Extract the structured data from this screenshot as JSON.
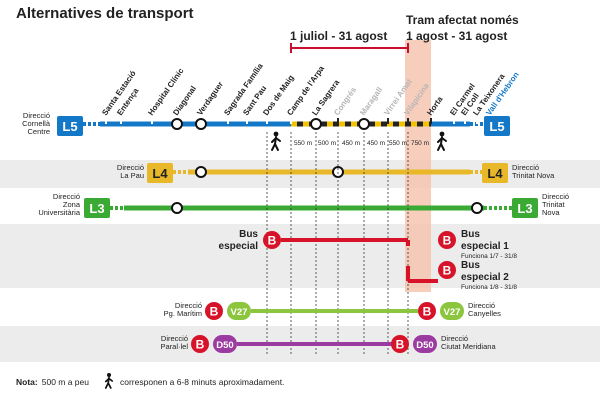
{
  "title": "Alternatives de transport",
  "period_1": "1 juliol - 31 agost",
  "period_2_line1": "Tram afectat només",
  "period_2_line2": "1 agost - 31 agost",
  "stations": [
    {
      "name": "Santa Estació"
    },
    {
      "name": "Entença"
    },
    {
      "name": "Hospital Clínic"
    },
    {
      "name": "Diagonal"
    },
    {
      "name": "Verdaguer"
    },
    {
      "name": "Sagrada Família"
    },
    {
      "name": "Sant Pau"
    },
    {
      "name": "Dos de Maig"
    },
    {
      "name": "Camp de l'Arpa"
    },
    {
      "name": "La Sagrera"
    },
    {
      "name": "Congrés"
    },
    {
      "name": "Maragall"
    },
    {
      "name": "Virrei Amat"
    },
    {
      "name": "Vilapicina"
    },
    {
      "name": "Horta"
    },
    {
      "name": "El Carmel"
    },
    {
      "name": "El Coll"
    },
    {
      "name": "La Teixonera"
    },
    {
      "name": "Vall d'Hebron"
    }
  ],
  "distances": [
    "550 m",
    "500 m",
    "450 m",
    "450 m",
    "550 m",
    "750 m"
  ],
  "lines": [
    {
      "badge": "L5",
      "color": "#1478c8",
      "dir_left": "Direcció\nCornellà\nCentre",
      "dir_right": ""
    },
    {
      "badge": "L4",
      "color": "#e8b828",
      "dir_left": "Direcció\nLa Pau",
      "dir_right": "Direcció\nTrinitat Nova"
    },
    {
      "badge": "L3",
      "color": "#3aaa35",
      "dir_left": "Direcció\nZona\nUniversitària",
      "dir_right": "Direcció\nTrinitat\nNova"
    }
  ],
  "bus_especial_left": "Bus\nespecial",
  "bus_1": {
    "title": "Bus\nespecial 1",
    "sub": "Funciona 1/7 - 31/8"
  },
  "bus_2": {
    "title": "Bus\nespecial 2",
    "sub": "Funciona 1/8 - 31/8"
  },
  "v27": {
    "badge": "V27",
    "dir_left": "Direcció\nPg. Marítim",
    "dir_right": "Direcció\nCanyelles",
    "color": "#8cc63f"
  },
  "d50": {
    "badge": "D50",
    "dir_left": "Direcció\nParal·lel",
    "dir_right": "Direcció\nCiutat Meridiana",
    "color": "#9b3aa0"
  },
  "bus_letter": "B",
  "note_bold": "Nota:",
  "note_a": "500 m a peu",
  "note_b": "corresponen a 6-8 minuts aproximadament.",
  "colors": {
    "bus_red": "#d7132a",
    "band": "#ececec",
    "highlight": "#f6c4b0",
    "period_red": "#c8102e"
  },
  "icons": [
    "walking-person-icon"
  ]
}
